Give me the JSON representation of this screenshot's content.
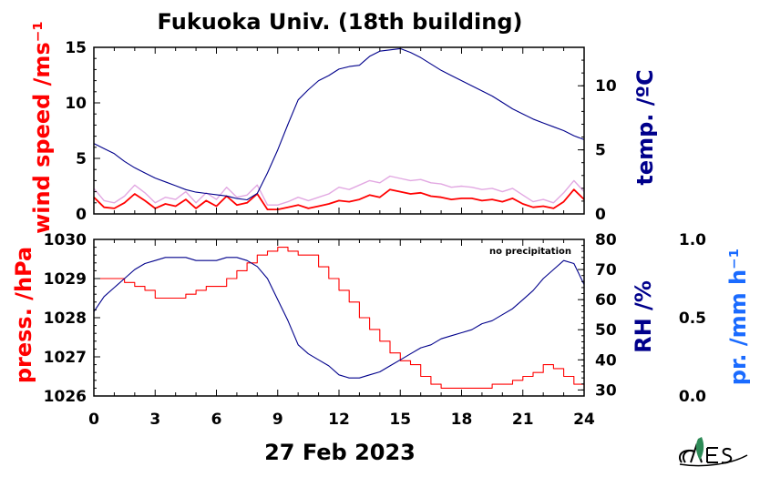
{
  "title": "Fukuoka Univ. (18th building)",
  "date_label": "27 Feb 2023",
  "annotation": "no precipitation",
  "colors": {
    "red": "#ff0000",
    "navy": "#00008b",
    "blue": "#1a6bff",
    "pink": "#dd99dd",
    "logo_green": "#2e8b57"
  },
  "chart_data": [
    {
      "type": "line",
      "panel": "top",
      "xlabel": "",
      "xlim": [
        0,
        24
      ],
      "ylabel": "wind speed /ms⁻¹",
      "ylim": [
        0,
        15
      ],
      "yticks": [
        "0",
        "5",
        "10",
        "15"
      ],
      "y2label": "temp. /ºC",
      "y2lim": [
        0,
        13
      ],
      "y2ticks": [
        "0",
        "5",
        "10"
      ],
      "series": [
        {
          "axis": "left",
          "color": "#ff0000",
          "x": [
            0,
            0.5,
            1,
            1.5,
            2,
            2.5,
            3,
            3.5,
            4,
            4.5,
            5,
            5.5,
            6,
            6.5,
            7,
            7.5,
            8,
            8.5,
            9,
            9.5,
            10,
            10.5,
            11,
            11.5,
            12,
            12.5,
            13,
            13.5,
            14,
            14.5,
            15,
            15.5,
            16,
            16.5,
            17,
            17.5,
            18,
            18.5,
            19,
            19.5,
            20,
            20.5,
            21,
            21.5,
            22,
            22.5,
            23,
            23.5,
            24
          ],
          "y": [
            1.5,
            0.6,
            0.5,
            1.0,
            1.8,
            1.2,
            0.5,
            0.9,
            0.7,
            1.3,
            0.5,
            1.2,
            0.7,
            1.6,
            0.8,
            1.0,
            1.8,
            0.4,
            0.4,
            0.6,
            0.8,
            0.5,
            0.7,
            0.9,
            1.2,
            1.1,
            1.3,
            1.7,
            1.5,
            2.2,
            2.0,
            1.8,
            1.9,
            1.6,
            1.5,
            1.3,
            1.4,
            1.4,
            1.2,
            1.3,
            1.1,
            1.4,
            0.9,
            0.6,
            0.7,
            0.5,
            1.1,
            2.2,
            1.3
          ]
        },
        {
          "axis": "left",
          "color": "#dd99dd",
          "kind": "gust",
          "x": [
            0,
            0.5,
            1,
            1.5,
            2,
            2.5,
            3,
            3.5,
            4,
            4.5,
            5,
            5.5,
            6,
            6.5,
            7,
            7.5,
            8,
            8.5,
            9,
            9.5,
            10,
            10.5,
            11,
            11.5,
            12,
            12.5,
            13,
            13.5,
            14,
            14.5,
            15,
            15.5,
            16,
            16.5,
            17,
            17.5,
            18,
            18.5,
            19,
            19.5,
            20,
            20.5,
            21,
            21.5,
            22,
            22.5,
            23,
            23.5,
            24
          ],
          "y": [
            2.3,
            1.2,
            1.0,
            1.6,
            2.6,
            1.9,
            1.0,
            1.5,
            1.3,
            2.0,
            1.0,
            1.9,
            1.3,
            2.4,
            1.5,
            1.7,
            2.6,
            0.8,
            0.8,
            1.1,
            1.5,
            1.2,
            1.5,
            1.8,
            2.4,
            2.2,
            2.6,
            3.0,
            2.8,
            3.4,
            3.2,
            3.0,
            3.1,
            2.8,
            2.7,
            2.4,
            2.5,
            2.4,
            2.2,
            2.3,
            2.0,
            2.3,
            1.7,
            1.1,
            1.3,
            1.0,
            1.9,
            3.0,
            2.0
          ]
        },
        {
          "axis": "right",
          "color": "#00008b",
          "x": [
            0,
            0.5,
            1,
            1.5,
            2,
            2.5,
            3,
            3.5,
            4,
            4.5,
            5,
            5.5,
            6,
            6.5,
            7,
            7.5,
            8,
            8.5,
            9,
            9.5,
            10,
            10.5,
            11,
            11.5,
            12,
            12.5,
            13,
            13.5,
            14,
            14.5,
            15,
            15.5,
            16,
            16.5,
            17,
            17.5,
            18,
            18.5,
            19,
            19.5,
            20,
            20.5,
            21,
            21.5,
            22,
            22.5,
            23,
            23.5,
            24
          ],
          "y": [
            5.5,
            5.1,
            4.7,
            4.1,
            3.6,
            3.2,
            2.8,
            2.5,
            2.2,
            1.9,
            1.7,
            1.6,
            1.5,
            1.4,
            1.2,
            1.1,
            1.6,
            3.2,
            5.0,
            7.0,
            8.9,
            9.7,
            10.4,
            10.8,
            11.3,
            11.5,
            11.6,
            12.3,
            12.7,
            12.8,
            12.9,
            12.6,
            12.2,
            11.7,
            11.2,
            10.8,
            10.4,
            10.0,
            9.6,
            9.2,
            8.7,
            8.2,
            7.8,
            7.4,
            7.1,
            6.8,
            6.5,
            6.1,
            5.8
          ]
        }
      ]
    },
    {
      "type": "line",
      "panel": "bottom",
      "xlabel": "27 Feb 2023",
      "xlim": [
        0,
        24
      ],
      "xticks": [
        "0",
        "3",
        "6",
        "9",
        "12",
        "15",
        "18",
        "21",
        "24"
      ],
      "ylabel": "press. /hPa",
      "ylim": [
        1026,
        1030
      ],
      "yticks": [
        "1026",
        "1027",
        "1028",
        "1029",
        "1030"
      ],
      "y2label": "RH /%",
      "y2lim": [
        28,
        80
      ],
      "y2ticks": [
        "30",
        "40",
        "50",
        "60",
        "70",
        "80"
      ],
      "y3label": "pr. /mm h⁻¹",
      "y3lim": [
        0,
        1
      ],
      "y3ticks": [
        "0.0",
        "0.5",
        "1.0"
      ],
      "series": [
        {
          "axis": "left",
          "color": "#ff0000",
          "step": true,
          "x": [
            0,
            0.5,
            1,
            1.5,
            2,
            2.5,
            3,
            3.5,
            4,
            4.5,
            5,
            5.5,
            6,
            6.5,
            7,
            7.5,
            8,
            8.5,
            9,
            9.5,
            10,
            10.5,
            11,
            11.5,
            12,
            12.5,
            13,
            13.5,
            14,
            14.5,
            15,
            15.5,
            16,
            16.5,
            17,
            17.5,
            18,
            18.5,
            19,
            19.5,
            20,
            20.5,
            21,
            21.5,
            22,
            22.5,
            23,
            23.5,
            24
          ],
          "y": [
            1029.0,
            1029.0,
            1029.0,
            1028.9,
            1028.8,
            1028.7,
            1028.5,
            1028.5,
            1028.5,
            1028.6,
            1028.7,
            1028.8,
            1028.8,
            1029.0,
            1029.2,
            1029.4,
            1029.6,
            1029.7,
            1029.8,
            1029.7,
            1029.6,
            1029.6,
            1029.3,
            1029.0,
            1028.7,
            1028.4,
            1028.0,
            1027.7,
            1027.4,
            1027.1,
            1026.9,
            1026.8,
            1026.5,
            1026.3,
            1026.2,
            1026.2,
            1026.2,
            1026.2,
            1026.2,
            1026.3,
            1026.3,
            1026.4,
            1026.5,
            1026.6,
            1026.8,
            1026.7,
            1026.5,
            1026.3,
            1026.2
          ]
        },
        {
          "axis": "right",
          "color": "#00008b",
          "x": [
            0,
            0.5,
            1,
            1.5,
            2,
            2.5,
            3,
            3.5,
            4,
            4.5,
            5,
            5.5,
            6,
            6.5,
            7,
            7.5,
            8,
            8.5,
            9,
            9.5,
            10,
            10.5,
            11,
            11.5,
            12,
            12.5,
            13,
            13.5,
            14,
            14.5,
            15,
            15.5,
            16,
            16.5,
            17,
            17.5,
            18,
            18.5,
            19,
            19.5,
            20,
            20.5,
            21,
            21.5,
            22,
            22.5,
            23,
            23.5,
            24
          ],
          "y": [
            56,
            61,
            64,
            67,
            70,
            72,
            73,
            74,
            74,
            74,
            73,
            73,
            73,
            74,
            74,
            73,
            71,
            67,
            60,
            53,
            45,
            42,
            40,
            38,
            35,
            34,
            34,
            35,
            36,
            38,
            40,
            42,
            44,
            45,
            47,
            48,
            49,
            50,
            52,
            53,
            55,
            57,
            60,
            63,
            67,
            70,
            73,
            72,
            65
          ]
        }
      ]
    }
  ]
}
